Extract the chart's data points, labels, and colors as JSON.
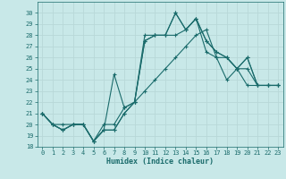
{
  "xlabel": "Humidex (Indice chaleur)",
  "bg_color": "#c8e8e8",
  "grid_color": "#b8d8d8",
  "line_color": "#1a6b6b",
  "xlim": [
    -0.5,
    23.5
  ],
  "ylim": [
    18,
    31
  ],
  "xticks": [
    0,
    1,
    2,
    3,
    4,
    5,
    6,
    7,
    8,
    9,
    10,
    11,
    12,
    13,
    14,
    15,
    16,
    17,
    18,
    19,
    20,
    21,
    22,
    23
  ],
  "yticks": [
    18,
    19,
    20,
    21,
    22,
    23,
    24,
    25,
    26,
    27,
    28,
    29,
    30
  ],
  "series": [
    [
      21.0,
      20.0,
      20.0,
      20.0,
      20.0,
      18.5,
      20.0,
      20.0,
      21.5,
      22.0,
      27.5,
      28.0,
      28.0,
      28.0,
      28.5,
      29.5,
      26.5,
      26.0,
      26.0,
      25.0,
      23.5,
      23.5,
      23.5,
      23.5
    ],
    [
      21.0,
      20.0,
      19.5,
      20.0,
      20.0,
      18.5,
      19.5,
      24.5,
      21.5,
      22.0,
      28.0,
      28.0,
      28.0,
      30.0,
      28.5,
      29.5,
      27.5,
      26.5,
      26.0,
      25.0,
      26.0,
      23.5,
      23.5,
      23.5
    ],
    [
      21.0,
      20.0,
      19.5,
      20.0,
      20.0,
      18.5,
      19.5,
      19.5,
      21.0,
      22.0,
      27.5,
      28.0,
      28.0,
      30.0,
      28.5,
      29.5,
      27.5,
      26.5,
      26.0,
      25.0,
      26.0,
      23.5,
      23.5,
      23.5
    ],
    [
      21.0,
      20.0,
      19.5,
      20.0,
      20.0,
      18.5,
      19.5,
      19.5,
      21.0,
      22.0,
      23.0,
      24.0,
      25.0,
      26.0,
      27.0,
      28.0,
      28.5,
      26.0,
      24.0,
      25.0,
      25.0,
      23.5,
      23.5,
      23.5
    ]
  ]
}
